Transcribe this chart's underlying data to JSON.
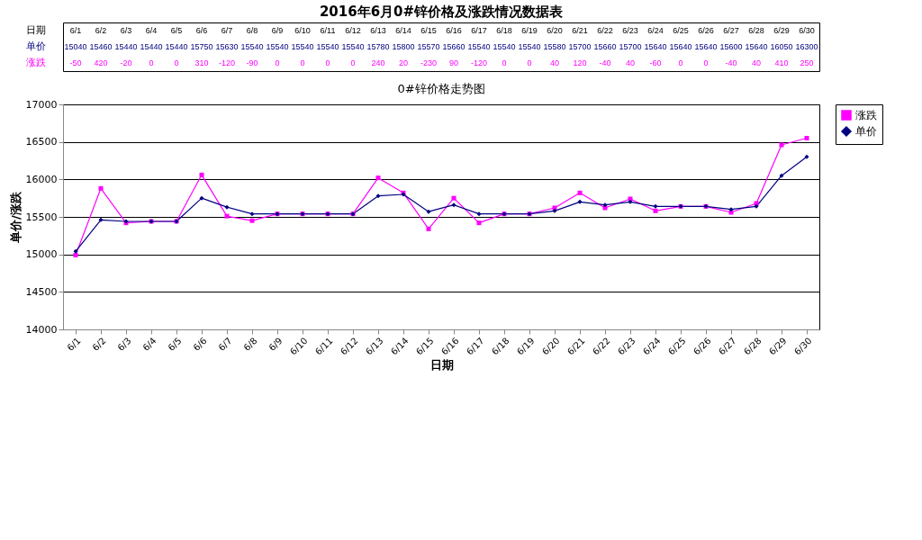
{
  "chart_data": {
    "type": "line",
    "title": "2016年6月0#锌价格及涨跌情况数据表",
    "subtitle": "0#锌价格走势图",
    "xlabel": "日期",
    "ylabel": "单价/涨跌",
    "categories": [
      "6/1",
      "6/2",
      "6/3",
      "6/4",
      "6/5",
      "6/6",
      "6/7",
      "6/8",
      "6/9",
      "6/10",
      "6/11",
      "6/12",
      "6/13",
      "6/14",
      "6/15",
      "6/16",
      "6/17",
      "6/18",
      "6/19",
      "6/20",
      "6/21",
      "6/22",
      "6/23",
      "6/24",
      "6/25",
      "6/26",
      "6/27",
      "6/28",
      "6/29",
      "6/30"
    ],
    "series": [
      {
        "name": "涨跌",
        "color": "#ff00ff",
        "marker": "square",
        "values": [
          14990,
          15880,
          15420,
          15440,
          15440,
          16060,
          15510,
          15450,
          15540,
          15540,
          15540,
          15540,
          16020,
          15820,
          15340,
          15750,
          15420,
          15540,
          15540,
          15620,
          15820,
          15620,
          15740,
          15580,
          15640,
          15640,
          15560,
          15680,
          16460,
          16550
        ]
      },
      {
        "name": "单价",
        "color": "#000080",
        "marker": "diamond",
        "values": [
          15040,
          15460,
          15440,
          15440,
          15440,
          15750,
          15630,
          15540,
          15540,
          15540,
          15540,
          15540,
          15780,
          15800,
          15570,
          15660,
          15540,
          15540,
          15540,
          15580,
          15700,
          15660,
          15700,
          15640,
          15640,
          15640,
          15600,
          15640,
          16050,
          16300
        ],
        "value_labels": [
          "15040",
          "15460",
          "15440",
          "15440",
          "15440",
          "15750",
          "15630",
          "15540",
          "15540",
          "15540",
          "15540",
          "15540",
          "15780",
          "15800",
          "15570",
          "15660",
          "15540",
          "15540",
          "15540",
          "15580",
          "15700",
          "15660",
          "15700",
          "15640",
          "15640",
          "15640",
          "15600",
          "15640",
          "16050",
          "16300"
        ]
      }
    ],
    "annotations": [
      "-50",
      "420",
      "-20",
      "0",
      "0",
      "310",
      "-120",
      "-90",
      "0",
      "0",
      "0",
      "0",
      "240",
      "20",
      "-230",
      "90",
      "-120",
      "0",
      "0",
      "40",
      "120",
      "-40",
      "40",
      "-60",
      "0",
      "0",
      "-40",
      "40",
      "410",
      "250"
    ],
    "ylim": [
      14000,
      17000
    ],
    "yticks": [
      14000,
      14500,
      15000,
      15500,
      16000,
      16500,
      17000
    ],
    "grid": "y",
    "legend": "right",
    "line_style": "solid"
  }
}
